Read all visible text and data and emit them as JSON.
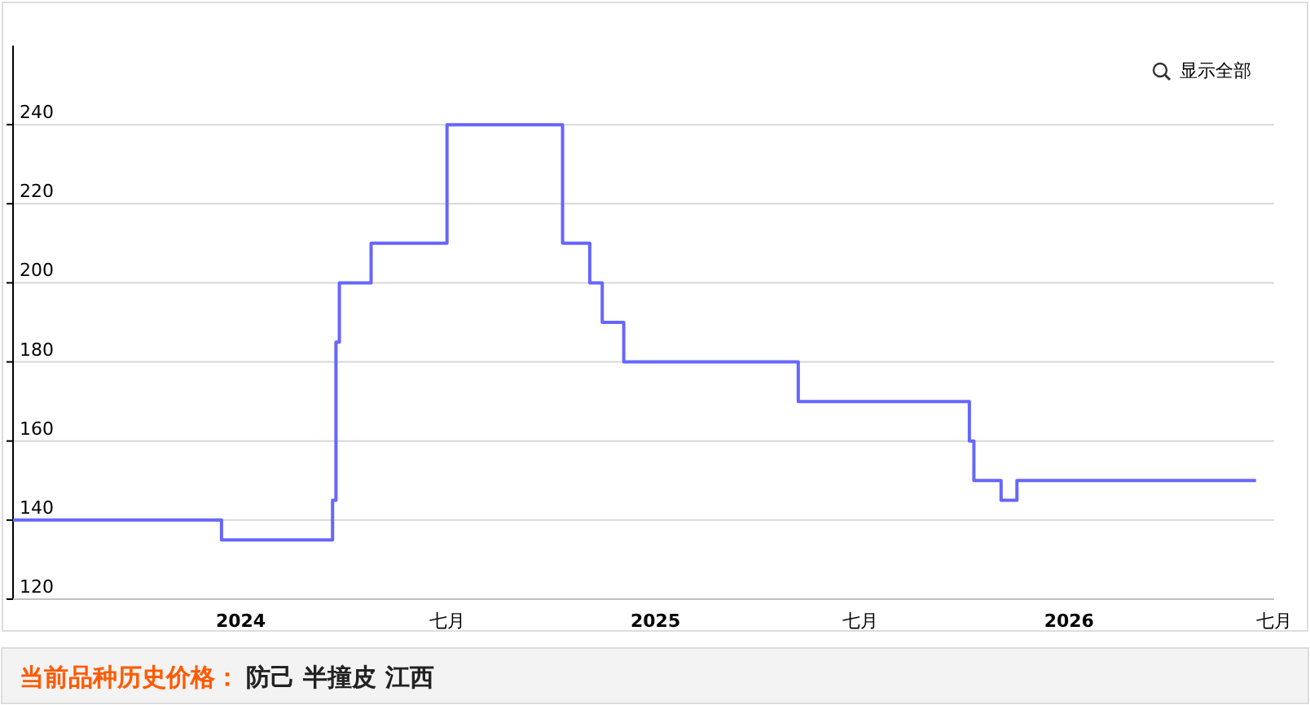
{
  "chart_data": {
    "type": "step",
    "x": [
      "2023-06-14",
      "2023-12-15",
      "2024-03-22",
      "2024-03-25",
      "2024-03-28",
      "2024-04-25",
      "2024-07-01",
      "2024-10-11",
      "2024-11-04",
      "2024-11-15",
      "2024-12-04",
      "2025-05-07",
      "2025-10-05",
      "2025-10-09",
      "2025-11-02",
      "2025-11-16",
      "2026-06-15"
    ],
    "series": [
      {
        "color": "#6666ff",
        "values": [
          140,
          135,
          145,
          185,
          200,
          210,
          240,
          210,
          200,
          190,
          180,
          170,
          160,
          150,
          145,
          150,
          150
        ]
      }
    ],
    "xlim": [
      "2023-06-14",
      "2026-07-01"
    ],
    "xticks": [
      {
        "value": "2024-01-01",
        "label": "2024"
      },
      {
        "value": "2024-07-01",
        "label": "七月"
      },
      {
        "value": "2025-01-01",
        "label": "2025"
      },
      {
        "value": "2025-07-01",
        "label": "七月"
      },
      {
        "value": "2026-01-01",
        "label": "2026"
      },
      {
        "value": "2026-07-01",
        "label": "七月"
      }
    ],
    "ylim": [
      120,
      260
    ],
    "yticks": [
      120,
      140,
      160,
      180,
      200,
      220,
      240
    ],
    "grid": "y",
    "annotations": [
      "显示全部",
      "当前品种历史价格：",
      "防己 半撞皮 江西"
    ]
  }
}
